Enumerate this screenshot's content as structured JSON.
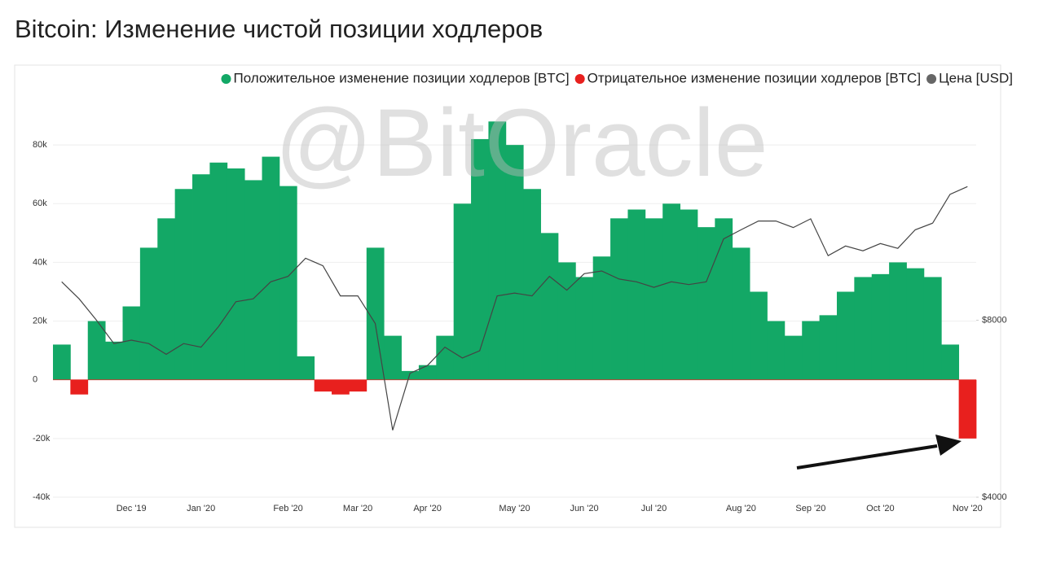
{
  "chart_data": {
    "type": "bar",
    "title": "Bitcoin: Изменение чистой позиции ходлеров",
    "watermark": "@BitOracle",
    "categories": [
      null,
      null,
      null,
      null,
      "Dec '19",
      null,
      null,
      null,
      "Jan '20",
      null,
      null,
      null,
      null,
      "Feb '20",
      null,
      null,
      null,
      "Mar '20",
      null,
      null,
      null,
      "Apr '20",
      null,
      null,
      null,
      null,
      "May '20",
      null,
      null,
      null,
      "Jun '20",
      null,
      null,
      null,
      "Jul '20",
      null,
      null,
      null,
      null,
      "Aug '20",
      null,
      null,
      null,
      "Sep '20",
      null,
      null,
      null,
      "Oct '20",
      null,
      null,
      null,
      null,
      "Nov '20"
    ],
    "series": [
      {
        "name": "Положительное изменение позиции ходлеров [BTC]",
        "color": "#13a866",
        "values": [
          12000,
          null,
          20000,
          13000,
          25000,
          45000,
          55000,
          65000,
          70000,
          74000,
          72000,
          68000,
          76000,
          66000,
          8000,
          null,
          null,
          null,
          45000,
          15000,
          3000,
          5000,
          15000,
          60000,
          82000,
          88000,
          80000,
          65000,
          50000,
          40000,
          35000,
          42000,
          55000,
          58000,
          55000,
          60000,
          58000,
          52000,
          55000,
          45000,
          30000,
          20000,
          15000,
          20000,
          22000,
          30000,
          35000,
          36000,
          40000,
          38000,
          35000,
          12000,
          null
        ]
      },
      {
        "name": "Отрицательное изменение позиции ходлеров [BTC]",
        "color": "#e8201e",
        "values": [
          null,
          -5000,
          null,
          null,
          null,
          null,
          null,
          null,
          null,
          null,
          null,
          null,
          null,
          null,
          null,
          -4000,
          -5000,
          -4000,
          null,
          null,
          null,
          null,
          null,
          null,
          null,
          null,
          null,
          null,
          null,
          null,
          null,
          null,
          null,
          null,
          null,
          null,
          null,
          null,
          null,
          null,
          null,
          null,
          null,
          null,
          null,
          null,
          null,
          null,
          null,
          null,
          null,
          null,
          -20000
        ]
      },
      {
        "name": "Цена [USD]",
        "color": "#666666",
        "axis": "y2",
        "type": "line",
        "values": [
          9300,
          8700,
          8000,
          7300,
          7400,
          7300,
          7000,
          7300,
          7200,
          7800,
          8600,
          8700,
          9300,
          9500,
          10200,
          9900,
          8800,
          8800,
          7900,
          5200,
          6500,
          6700,
          7200,
          6900,
          7100,
          8800,
          8900,
          8800,
          9500,
          9000,
          9600,
          9700,
          9400,
          9300,
          9100,
          9300,
          9200,
          9300,
          11000,
          11400,
          11800,
          11800,
          11500,
          11900,
          10300,
          10700,
          10500,
          10800,
          10600,
          11400,
          11700,
          13100,
          13500
        ]
      }
    ],
    "ylim": [
      -40000,
      100000
    ],
    "yticks": [
      {
        "value": -40000,
        "label": "-40k"
      },
      {
        "value": -20000,
        "label": "-20k"
      },
      0,
      {
        "value": 20000,
        "label": "20k"
      },
      {
        "value": 40000,
        "label": "40k"
      },
      {
        "value": 60000,
        "label": "60k"
      },
      {
        "value": 80000,
        "label": "80k"
      }
    ],
    "y2lim": [
      4000,
      20000
    ],
    "y2scale": "log",
    "y2ticks": [
      {
        "value": 4000,
        "label": "$4000"
      },
      {
        "value": 8000,
        "label": "$8000"
      }
    ],
    "grid": true,
    "legend": "top-right"
  }
}
